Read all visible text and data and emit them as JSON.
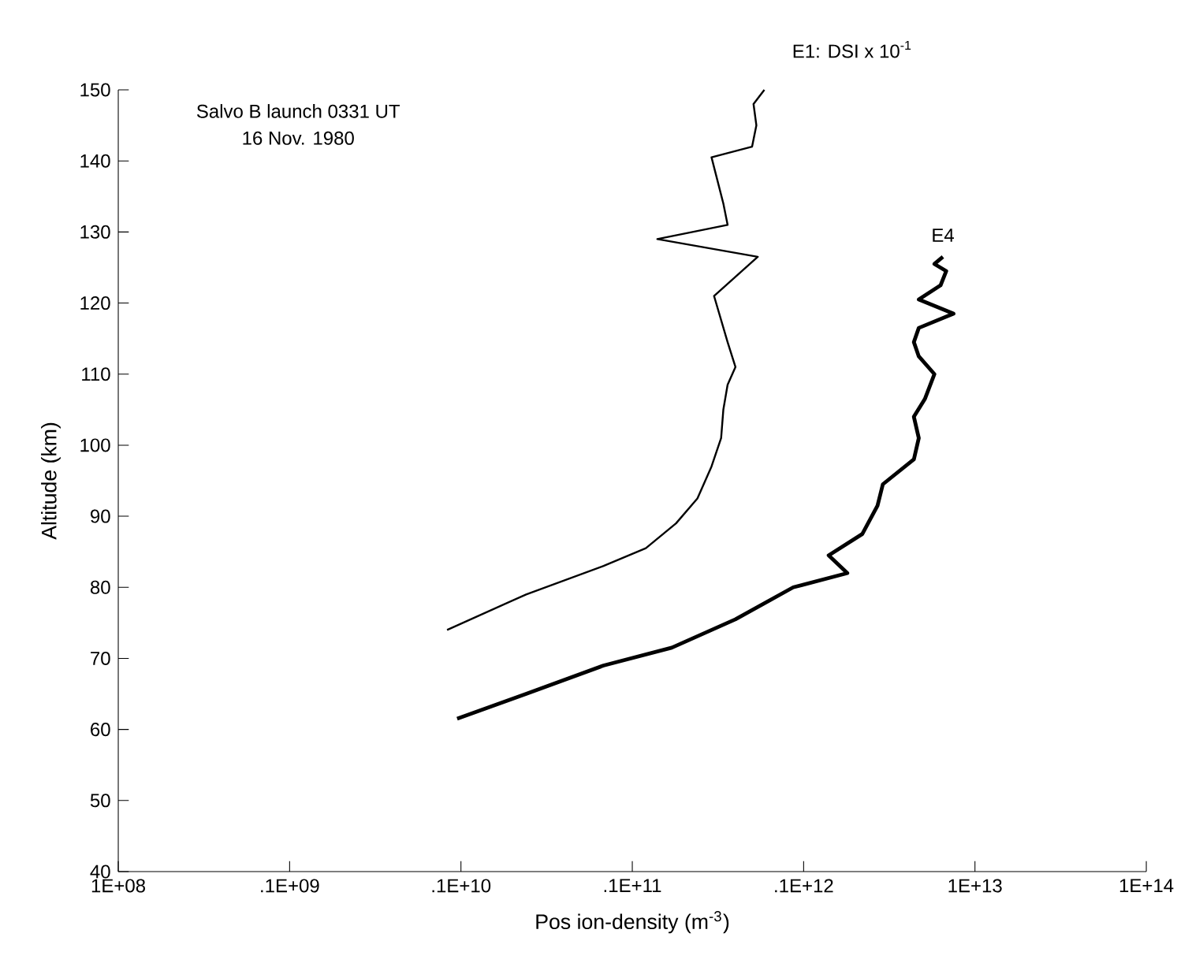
{
  "chart_data": {
    "type": "line",
    "log": "x",
    "grid": false,
    "marker": "none",
    "line_style": "solid",
    "xlabel": "Pos ion-density (m$^{-3}$)",
    "ylabel": "Altitude (km)",
    "annotations": [
      "Salvo B launch 0331 UT",
      "16 Nov. 1980"
    ],
    "xlim": [
      100000000.0,
      100000000000000.0
    ],
    "xticks": [
      {
        "value": 100000000.0,
        "label": "1E+08"
      },
      {
        "value": 1000000000.0,
        "label": ".1E+09"
      },
      {
        "value": 10000000000.0,
        "label": ".1E+10"
      },
      {
        "value": 100000000000.0,
        "label": ".1E+11"
      },
      {
        "value": 1000000000000.0,
        "label": ".1E+12"
      },
      {
        "value": 10000000000000.0,
        "label": "1E+13"
      },
      {
        "value": 100000000000000.0,
        "label": "1E+14"
      }
    ],
    "ylim": [
      40,
      150
    ],
    "yticks": [
      40,
      50,
      60,
      70,
      80,
      90,
      100,
      110,
      120,
      130,
      140,
      150
    ],
    "series": [
      {
        "name": "E1: DSI x 10$^{-1}$",
        "color": "#000000",
        "x": [
          8300000000.0,
          24000000000.0,
          68000000000.0,
          120000000000.0,
          180000000000.0,
          240000000000.0,
          290000000000.0,
          330000000000.0,
          340000000000.0,
          360000000000.0,
          400000000000.0,
          360000000000.0,
          300000000000.0,
          540000000000.0,
          140000000000.0,
          360000000000.0,
          340000000000.0,
          290000000000.0,
          500000000000.0,
          530000000000.0,
          510000000000.0,
          590000000000.0
        ],
        "values": [
          74,
          79,
          83,
          85.5,
          89,
          92.5,
          97,
          101,
          105,
          108.5,
          111,
          114.5,
          121,
          126.5,
          129,
          131,
          134,
          140.5,
          142,
          145,
          148,
          150
        ]
      },
      {
        "name": "E4",
        "color": "#000000",
        "x": [
          9500000000.0,
          24000000000.0,
          68000000000.0,
          170000000000.0,
          400000000000.0,
          870000000000.0,
          1800000000000.0,
          1400000000000.0,
          2200000000000.0,
          2700000000000.0,
          2900000000000.0,
          4400000000000.0,
          4700000000000.0,
          4400000000000.0,
          5100000000000.0,
          5800000000000.0,
          4700000000000.0,
          4400000000000.0,
          4700000000000.0,
          7500000000000.0,
          4700000000000.0,
          6300000000000.0,
          6800000000000.0,
          5800000000000.0,
          6500000000000.0
        ],
        "values": [
          61.5,
          65,
          69,
          71.5,
          75.5,
          80,
          82,
          84.5,
          87.5,
          91.5,
          94.5,
          98,
          101,
          104,
          106.5,
          110,
          112.5,
          114.5,
          116.5,
          118.5,
          120.5,
          122.5,
          124.5,
          125.5,
          126.5
        ]
      }
    ]
  }
}
